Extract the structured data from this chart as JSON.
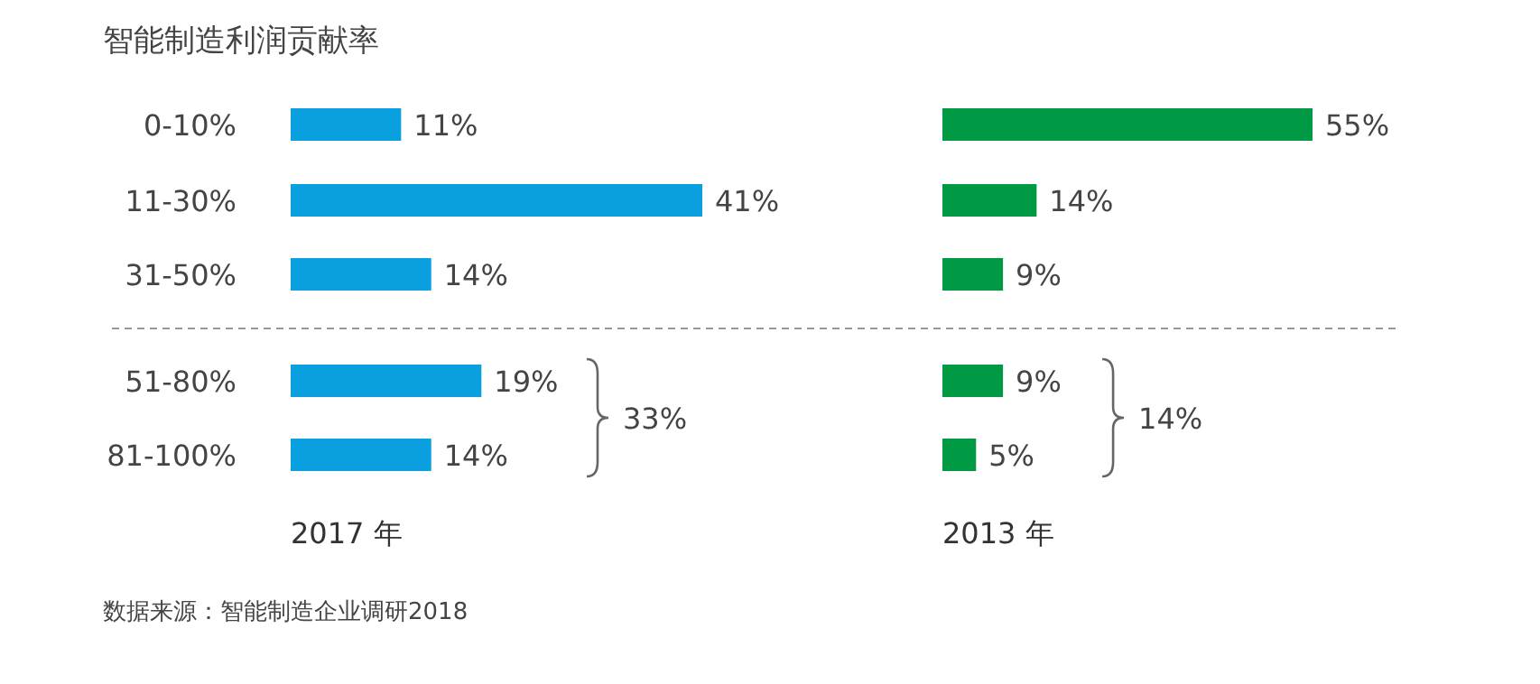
{
  "chart_data": [
    {
      "type": "bar",
      "orientation": "horizontal",
      "title": "智能制造利润贡献率",
      "xlabel": "2017 年",
      "categories": [
        "0-10%",
        "11-30%",
        "31-50%",
        "51-80%",
        "81-100%"
      ],
      "values": [
        11,
        41,
        14,
        19,
        14
      ],
      "value_labels": [
        "11%",
        "41%",
        "14%",
        "19%",
        "14%"
      ],
      "color": "#0aa0e0",
      "tick_labels": "y",
      "annotations": [
        "33%",
        "数据来源：智能制造企业调研2018"
      ]
    },
    {
      "type": "bar",
      "orientation": "horizontal",
      "xlabel": "2013 年",
      "categories": [
        null,
        null,
        null,
        null,
        null
      ],
      "values": [
        55,
        14,
        9,
        9,
        5
      ],
      "value_labels": [
        "55%",
        "14%",
        "9%",
        "9%",
        "5%"
      ],
      "color": "#009a44",
      "tick_labels": false,
      "annotations": [
        "14%"
      ]
    }
  ]
}
